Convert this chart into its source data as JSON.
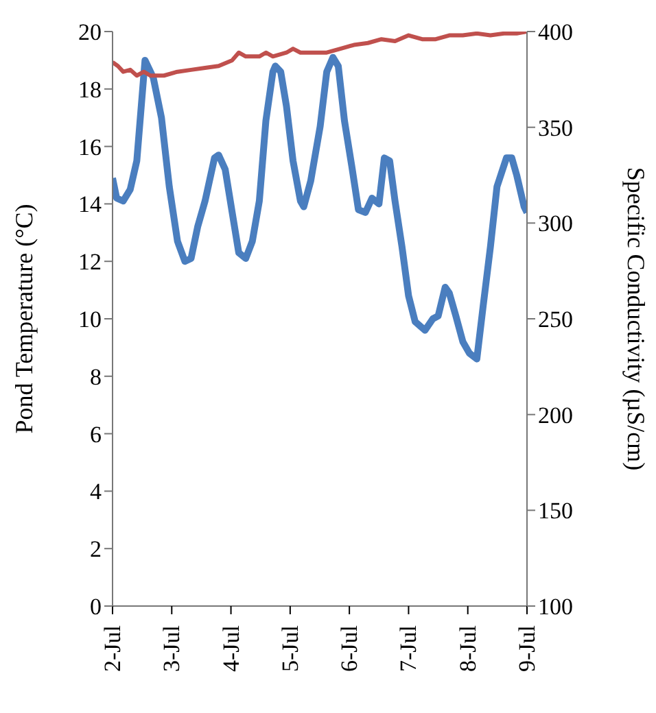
{
  "chart_data": {
    "type": "line",
    "ylabel": "Pond Temperature (°C)",
    "y2label": "Specific Conductivity (µS/cm)",
    "xlim": [
      "--07-02",
      "--07-09"
    ],
    "xticks": [
      {
        "value": "--07-02",
        "label": "2-Jul"
      },
      {
        "value": "--07-03",
        "label": "3-Jul"
      },
      {
        "value": "--07-04",
        "label": "4-Jul"
      },
      {
        "value": "--07-05",
        "label": "5-Jul"
      },
      {
        "value": "--07-06",
        "label": "6-Jul"
      },
      {
        "value": "--07-07",
        "label": "7-Jul"
      },
      {
        "value": "--07-08",
        "label": "8-Jul"
      },
      {
        "value": "--07-09",
        "label": "9-Jul"
      }
    ],
    "ylim": [
      0,
      20
    ],
    "yticks": [
      0,
      2,
      4,
      6,
      8,
      10,
      12,
      14,
      16,
      18,
      20
    ],
    "y2lim": [
      100,
      400
    ],
    "y2ticks": [
      100,
      150,
      200,
      250,
      300,
      350,
      400
    ],
    "grid": false,
    "marker": "none",
    "line_style": "solid",
    "series": [
      {
        "color": "#4a7ebf",
        "x": [
          "--07-02T00:00",
          "--07-02T01:40",
          "--07-02T04:20",
          "--07-02T07:10",
          "--07-02T09:50",
          "--07-02T13:10",
          "--07-02T16:30",
          "--07-02T19:50",
          "--07-02T23:00",
          "--07-03T02:20",
          "--07-03T05:20",
          "--07-03T07:50",
          "--07-03T10:30",
          "--07-03T13:30",
          "--07-03T17:20",
          "--07-03T19:00",
          "--07-03T21:40",
          "--07-04T00:30",
          "--07-04T03:10",
          "--07-04T06:00",
          "--07-04T08:40",
          "--07-04T11:30",
          "--07-04T14:10",
          "--07-04T17:00",
          "--07-04T18:00",
          "--07-04T20:10",
          "--07-04T22:30",
          "--07-05T01:10",
          "--07-05T04:10",
          "--07-05T05:30",
          "--07-05T08:20",
          "--07-05T12:10",
          "--07-05T14:50",
          "--07-05T17:20",
          "--07-05T19:30",
          "--07-05T22:00",
          "--07-06T01:00",
          "--07-06T03:40",
          "--07-06T06:30",
          "--07-06T09:10",
          "--07-06T12:00",
          "--07-06T14:10",
          "--07-06T16:20",
          "--07-06T18:30",
          "--07-06T21:20",
          "--07-07T00:00",
          "--07-07T02:40",
          "--07-07T06:40",
          "--07-07T09:50",
          "--07-07T12:00",
          "--07-07T14:50",
          "--07-07T16:30",
          "--07-07T19:10",
          "--07-07T22:00",
          "--07-08T00:40",
          "--07-08T03:40",
          "--07-08T06:10",
          "--07-08T09:10",
          "--07-08T11:50",
          "--07-08T15:40",
          "--07-08T17:50",
          "--07-08T19:50",
          "--07-08T22:50",
          "--07-09T00:00"
        ],
        "values": [
          14.9,
          14.2,
          14.1,
          14.5,
          15.5,
          19.0,
          18.4,
          17.0,
          14.6,
          12.7,
          12.0,
          12.1,
          13.2,
          14.1,
          15.6,
          15.7,
          15.2,
          13.7,
          12.3,
          12.1,
          12.7,
          14.1,
          16.9,
          18.6,
          18.8,
          18.6,
          17.4,
          15.5,
          14.1,
          13.9,
          14.8,
          16.7,
          18.6,
          19.1,
          18.8,
          16.9,
          15.3,
          13.8,
          13.7,
          14.2,
          14.0,
          15.6,
          15.5,
          14.1,
          12.5,
          10.8,
          9.9,
          9.6,
          10.0,
          10.1,
          11.1,
          10.9,
          10.1,
          9.2,
          8.8,
          8.6,
          10.4,
          12.5,
          14.6,
          15.6,
          15.6,
          15.0,
          13.9,
          13.7
        ]
      },
      {
        "color": "#c0504d",
        "axis": "y2",
        "x": [
          "--07-02T00:00",
          "--07-02T02:10",
          "--07-02T04:20",
          "--07-02T07:10",
          "--07-02T09:50",
          "--07-02T12:40",
          "--07-02T15:20",
          "--07-02T20:50",
          "--07-03T02:20",
          "--07-03T07:50",
          "--07-03T13:30",
          "--07-03T19:00",
          "--07-04T00:30",
          "--07-04T03:10",
          "--07-04T06:00",
          "--07-04T08:40",
          "--07-04T11:30",
          "--07-04T14:10",
          "--07-04T17:00",
          "--07-04T22:30",
          "--07-05T01:10",
          "--07-05T04:10",
          "--07-05T09:40",
          "--07-05T14:50",
          "--07-05T20:20",
          "--07-06T01:50",
          "--07-06T07:30",
          "--07-06T13:00",
          "--07-06T18:30",
          "--07-07T00:00",
          "--07-07T05:30",
          "--07-07T11:00",
          "--07-07T16:30",
          "--07-07T22:00",
          "--07-08T03:40",
          "--07-08T09:10",
          "--07-08T14:40",
          "--07-08T19:50",
          "--07-09T00:00"
        ],
        "values": [
          384,
          382,
          379,
          380,
          377,
          379,
          377,
          377,
          379,
          380,
          381,
          382,
          385,
          389,
          387,
          387,
          387,
          389,
          387,
          389,
          391,
          389,
          389,
          389,
          391,
          393,
          394,
          396,
          395,
          398,
          396,
          396,
          398,
          398,
          399,
          398,
          399,
          399,
          400
        ]
      }
    ]
  }
}
